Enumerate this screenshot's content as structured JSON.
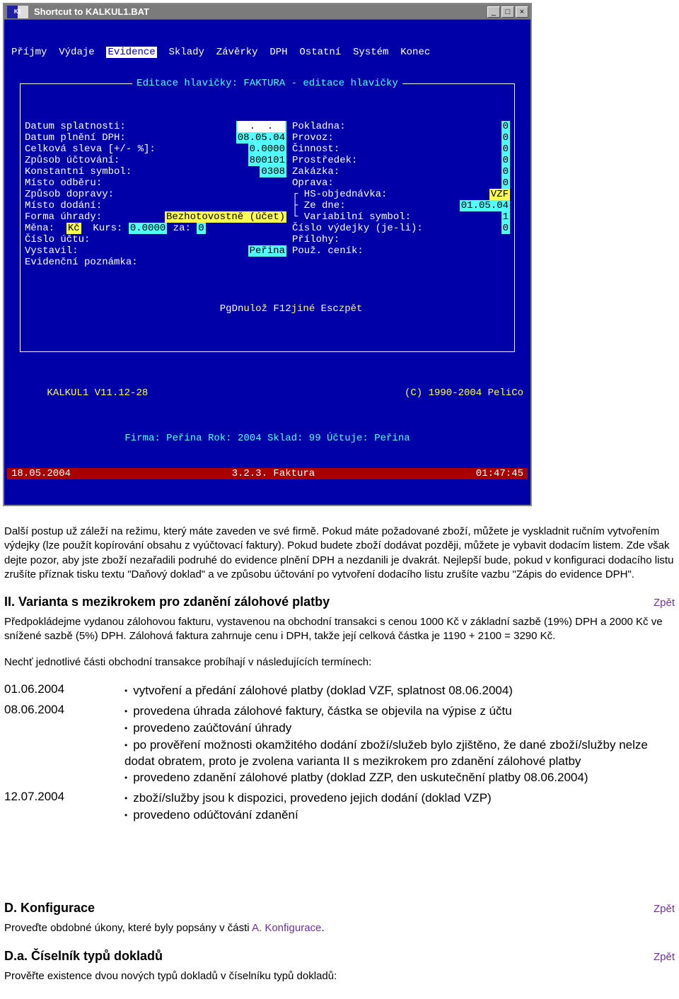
{
  "titlebar": {
    "text": "Shortcut to KALKUL1.BAT",
    "icon": "K1"
  },
  "menu": [
    "Příjmy",
    "Výdaje",
    "Evidence",
    "Sklady",
    "Závěrky",
    "DPH",
    "Ostatní",
    "Systém",
    "Konec"
  ],
  "menu_selected_index": 2,
  "box_title": "Editace hlavičky: FAKTURA - editace hlavičky",
  "left_fields": [
    {
      "l": "Datum splatnosti:",
      "v": "  .  .  ",
      "hl": true
    },
    {
      "l": "Datum plnění DPH:",
      "v": "08.05.04"
    },
    {
      "l": "Celková sleva [+/- %]:",
      "v": "0.0000"
    },
    {
      "l": "Způsob účtování:",
      "v": "800101"
    },
    {
      "l": "Konstantní symbol:",
      "v": "0308"
    },
    {
      "l": "Místo odběru:",
      "v": ""
    },
    {
      "l": "Způsob dopravy:",
      "v": ""
    },
    {
      "l": "Místo dodání:",
      "v": ""
    },
    {
      "l": "Forma úhrady:",
      "v": "Bezhotovostně (účet)",
      "vy": true
    },
    {
      "l": "Měna:",
      "custom": true
    },
    {
      "l": "Číslo účtu:",
      "v": ""
    },
    {
      "l": "Vystavil:",
      "v": "Peřina",
      "pad": true
    },
    {
      "l": "Evidenční poznámka:",
      "v": ""
    }
  ],
  "mena": {
    "curr": "Kč",
    "kurs_l": "Kurs:",
    "kurs": "0.0000",
    "za_l": "za:",
    "za": "0"
  },
  "right_fields": [
    {
      "l": "Pokladna:",
      "v": "0"
    },
    {
      "l": "Provoz:",
      "v": "0"
    },
    {
      "l": "Činnost:",
      "v": "0"
    },
    {
      "l": "Prostředek:",
      "v": "0"
    },
    {
      "l": "Zakázka:",
      "v": "0"
    },
    {
      "l": "Oprava:",
      "v": "0"
    },
    {
      "l": "HS-objednávka:",
      "v": "VZF",
      "pre": "┌ ",
      "vy": true
    },
    {
      "l": "Ze dne:",
      "v": "01.05.04",
      "pre": "├ "
    },
    {
      "l": "Variabilní symbol:",
      "v": "1",
      "pre": "└ "
    },
    {
      "l": "Číslo výdejky (je-li):",
      "v": "0"
    },
    {
      "l": "Přílohy:",
      "v": ""
    },
    {
      "l": "Použ. ceník:",
      "v": ""
    }
  ],
  "help": {
    "k1": "PgDn",
    "t1": "ulož ",
    "k2": "F12",
    "t2": "jiné ",
    "k3": "Esc",
    "t3": "zpět"
  },
  "status1": {
    "l": "KALKUL1 V11.12-28",
    "r": "(C) 1990-2004 PeliCo"
  },
  "status2": "Firma: Peřina Rok: 2004 Sklad: 99 Účtuje: Peřina",
  "redbar": {
    "l": "18.05.2004",
    "c": "3.2.3. Faktura",
    "r": "01:47:45"
  },
  "para1": "Další postup už záleží na režimu, který máte zaveden ve své firmě. Pokud máte požadované zboží, můžete je vyskladnit ručním vytvořením výdejky (lze použít kopírování obsahu z vyúčtovací faktury). Pokud budete zboží dodávat později, můžete je vybavit dodacím listem. Zde však dejte pozor, aby jste zboží nezařadili podruhé do evidence plnění DPH a nezdanili je dvakrát. Nejlepší bude, pokud v konfiguraci dodacího listu zrušíte příznak tisku textu \"Daňový doklad\" a ve způsobu účtování po vytvoření dodacího listu zrušíte vazbu \"Zápis do evidence DPH\".",
  "h2a": "II. Varianta s mezikrokem pro zdanění zálohové platby",
  "para2": "Předpokládejme vydanou zálohovou fakturu, vystavenou na obchodní transakci s cenou 1000 Kč v základní sazbě (19%) DPH a 2000 Kč ve snížené sazbě (5%) DPH. Zálohová faktura zahrnuje cenu i DPH, takže její celková částka je 1190 + 2100 = 3290 Kč.",
  "para3": "Nechť jednotlivé části obchodní transakce probíhají v následujících termínech:",
  "table": [
    {
      "d": "01.06.2004",
      "items": [
        "vytvoření a předání zálohové platby (doklad VZF, splatnost 08.06.2004)"
      ]
    },
    {
      "d": "08.06.2004",
      "items": [
        "provedena úhrada zálohové faktury, částka se objevila na výpise z účtu",
        "provedeno zaúčtování úhrady",
        "po prověření možnosti okamžitého dodání zboží/služeb bylo zjištěno, že dané zboží/služby nelze dodat obratem, proto je zvolena varianta II s mezikrokem pro zdanění zálohové platby",
        "provedeno zdanění zálohové platby (doklad ZZP, den uskutečnění platby 08.06.2004)"
      ]
    },
    {
      "d": "12.07.2004",
      "items": [
        "zboží/služby jsou k dispozici, provedeno jejich dodání (doklad VZP)",
        "provedeno odúčtování zdanění"
      ]
    }
  ],
  "h2b": "D. Konfigurace",
  "para4a": "Proveďte obdobné úkony, které byly popsány v části ",
  "para4link": "A. Konfigurace",
  "para4b": ".",
  "h2c": "D.a. Číselník typů dokladů",
  "para5": "Prověřte existence dvou nových typů dokladů v číselníku typů dokladů:",
  "back_label": "Zpět"
}
